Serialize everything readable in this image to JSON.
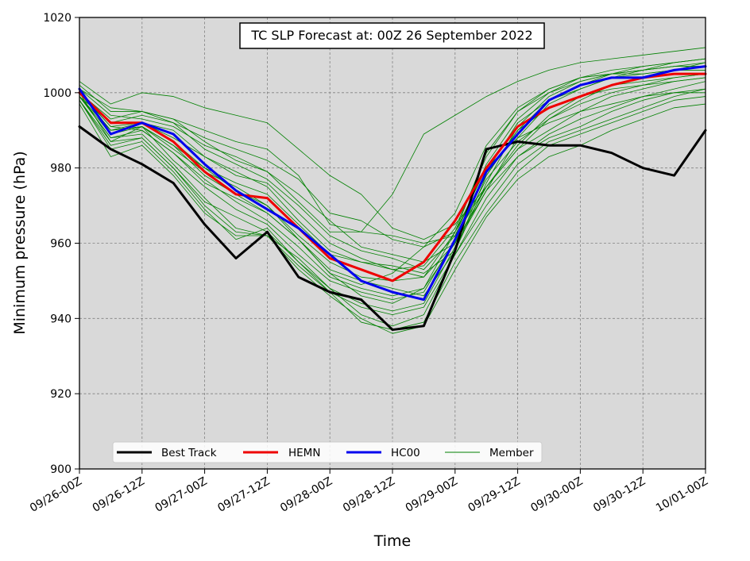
{
  "chart_data": {
    "type": "line",
    "title": "TC SLP Forecast at: 00Z 26 September 2022",
    "xlabel": "Time",
    "ylabel": "Minimum pressure (hPa)",
    "ylim": [
      900,
      1020
    ],
    "yticks": [
      900,
      920,
      940,
      960,
      980,
      1000,
      1020
    ],
    "x_index_range": [
      0,
      20
    ],
    "xticks": [
      "09/26-00Z",
      "09/26-12Z",
      "09/27-00Z",
      "09/27-12Z",
      "09/28-00Z",
      "09/28-12Z",
      "09/29-00Z",
      "09/29-12Z",
      "09/30-00Z",
      "09/30-12Z",
      "10/01-00Z"
    ],
    "x_step_hours": 6,
    "grid": true,
    "background": "#d9d9d9",
    "legend_location": "lower-left",
    "series": [
      {
        "name": "Best Track",
        "color": "#000000",
        "width": 3,
        "values": [
          991,
          985,
          981,
          976,
          965,
          956,
          963,
          951,
          947,
          945,
          937,
          938,
          958,
          985,
          987,
          986,
          986,
          984,
          980,
          978,
          990
        ]
      },
      {
        "name": "HEMN",
        "color": "#ee0000",
        "width": 3,
        "values": [
          1000,
          992,
          992,
          987,
          979,
          973,
          972,
          964,
          956,
          953,
          950,
          955,
          966,
          980,
          991,
          996,
          999,
          1002,
          1004,
          1005,
          1005
        ]
      },
      {
        "name": "HC00",
        "color": "#0000ee",
        "width": 3,
        "values": [
          1001,
          989,
          992,
          989,
          981,
          974,
          969,
          964,
          957,
          950,
          947,
          945,
          961,
          979,
          989,
          998,
          1002,
          1004,
          1004,
          1006,
          1007
        ]
      },
      {
        "name": "Member",
        "color": "#008000",
        "width": 0.8,
        "members": [
          [
            1003,
            997,
            1000,
            999,
            996,
            994,
            992,
            985,
            978,
            973,
            964,
            961,
            965,
            975,
            985,
            993,
            998,
            1002,
            1004,
            1006,
            1008
          ],
          [
            1002,
            995,
            995,
            992,
            988,
            985,
            982,
            977,
            968,
            966,
            961,
            959,
            963,
            978,
            990,
            998,
            1002,
            1005,
            1007,
            1008,
            1009
          ],
          [
            1001,
            994,
            993,
            991,
            986,
            983,
            979,
            971,
            963,
            963,
            973,
            989,
            994,
            999,
            1003,
            1006,
            1008,
            1009,
            1010,
            1011,
            1012
          ],
          [
            1000,
            993,
            995,
            993,
            987,
            982,
            979,
            973,
            966,
            959,
            957,
            955,
            960,
            974,
            988,
            997,
            1001,
            1004,
            1006,
            1008,
            1009
          ],
          [
            1000,
            992,
            994,
            992,
            985,
            981,
            977,
            970,
            962,
            958,
            956,
            953,
            962,
            981,
            993,
            1000,
            1004,
            1006,
            1007,
            1008,
            1009
          ],
          [
            1000,
            991,
            992,
            990,
            983,
            978,
            976,
            968,
            960,
            956,
            953,
            951,
            963,
            984,
            995,
            1001,
            1004,
            1005,
            1006,
            1007,
            1008
          ],
          [
            999,
            992,
            992,
            988,
            983,
            979,
            975,
            966,
            958,
            955,
            953,
            954,
            964,
            983,
            995,
            1000,
            1003,
            1005,
            1006,
            1007,
            1007
          ],
          [
            1000,
            990,
            991,
            986,
            980,
            976,
            973,
            965,
            957,
            955,
            954,
            952,
            958,
            976,
            991,
            999,
            1003,
            1005,
            1006,
            1007,
            1007
          ],
          [
            999,
            989,
            991,
            985,
            979,
            975,
            970,
            962,
            955,
            951,
            950,
            951,
            960,
            979,
            992,
            998,
            1001,
            1004,
            1005,
            1006,
            1006
          ],
          [
            1000,
            991,
            990,
            984,
            976,
            972,
            968,
            961,
            952,
            949,
            952,
            959,
            968,
            986,
            996,
            1001,
            1004,
            1005,
            1005,
            1006,
            1006
          ],
          [
            999,
            990,
            991,
            986,
            978,
            973,
            968,
            961,
            953,
            950,
            948,
            946,
            958,
            978,
            990,
            996,
            999,
            1002,
            1003,
            1004,
            1005
          ],
          [
            999,
            988,
            990,
            984,
            977,
            971,
            966,
            959,
            951,
            948,
            946,
            948,
            960,
            975,
            986,
            994,
            999,
            1001,
            1002,
            1004,
            1005
          ],
          [
            1000,
            987,
            991,
            982,
            975,
            969,
            965,
            957,
            950,
            947,
            945,
            947,
            961,
            977,
            987,
            993,
            997,
            1000,
            1002,
            1003,
            1004
          ],
          [
            998,
            986,
            988,
            980,
            971,
            967,
            963,
            955,
            948,
            944,
            942,
            944,
            959,
            974,
            983,
            989,
            993,
            996,
            999,
            1001,
            1003
          ],
          [
            999,
            988,
            989,
            981,
            972,
            964,
            962,
            954,
            947,
            943,
            941,
            943,
            957,
            970,
            981,
            987,
            990,
            993,
            996,
            999,
            1001
          ],
          [
            1000,
            990,
            992,
            987,
            980,
            974,
            970,
            961,
            952,
            946,
            944,
            948,
            963,
            980,
            988,
            992,
            995,
            997,
            999,
            1000,
            1001
          ],
          [
            998,
            987,
            988,
            980,
            970,
            963,
            962,
            956,
            948,
            941,
            938,
            941,
            957,
            972,
            983,
            988,
            991,
            995,
            998,
            1000,
            1000
          ],
          [
            998,
            985,
            987,
            979,
            969,
            961,
            964,
            955,
            947,
            939,
            937,
            939,
            955,
            968,
            979,
            986,
            989,
            992,
            995,
            998,
            999
          ],
          [
            997,
            983,
            986,
            978,
            968,
            962,
            962,
            953,
            946,
            940,
            936,
            938,
            953,
            967,
            977,
            983,
            986,
            990,
            993,
            996,
            997
          ],
          [
            1001,
            996,
            995,
            993,
            990,
            987,
            985,
            978,
            965,
            963,
            962,
            960,
            962,
            975,
            985,
            990,
            995,
            999,
            1001,
            1003,
            1004
          ]
        ]
      }
    ]
  }
}
